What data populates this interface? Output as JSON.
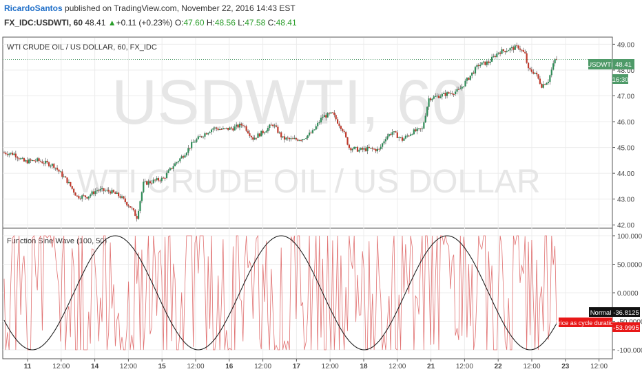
{
  "header": {
    "author": "RicardoSantos",
    "published": "published on TradingView.com, November 22, 2016 14:43 EST",
    "symbol": "FX_IDC:USDWTI, 60",
    "last": "48.41",
    "change_arrow": "▲",
    "change": "+0.11 (+0.23%)",
    "o_label": "O:",
    "o_val": "47.60",
    "h_label": "H:",
    "h_val": "48.56",
    "l_label": "L:",
    "l_val": "47.58",
    "c_label": "C:",
    "c_val": "48.41"
  },
  "main_pane": {
    "title": "WTI CRUDE OIL / US DOLLAR, 60, FX_IDC",
    "watermark_symbol": "USDWTI, 60",
    "watermark_name": "WTI CRUDE OIL / US DOLLAR",
    "symbol_tag": "USDWTI",
    "price_tag": "48.41",
    "time_tag": "16:30",
    "y_ticks": [
      "49.00",
      "48.00",
      "47.00",
      "46.00",
      "45.00",
      "44.00",
      "43.00",
      "42.00"
    ]
  },
  "indicator_pane": {
    "title": "Function Sine Wave (100, 50)",
    "y_ticks": [
      "100.0000",
      "50.0000",
      "0.0000",
      "-50.0000",
      "-100.0000"
    ],
    "normal_label": "Normal",
    "normal_value": "-36.8125",
    "cycle_label": "Price as cycle duration",
    "cycle_value": "-53.9995"
  },
  "x_axis": {
    "labels": [
      "11",
      "12:00",
      "14",
      "12:00",
      "15",
      "12:00",
      "16",
      "12:00",
      "17",
      "12:00",
      "18",
      "12:00",
      "21",
      "12:00",
      "22",
      "12:00",
      "23",
      "12:00"
    ]
  },
  "colors": {
    "up": "#2e8b57",
    "down": "#c0392b",
    "sine": "#222222",
    "cycle": "#e07070",
    "tag_green": "#4e9a68",
    "tag_red": "#e81818"
  },
  "chart_data": [
    {
      "type": "candlestick",
      "title": "WTI CRUDE OIL / US DOLLAR, 60, FX_IDC",
      "ylim": [
        41.9,
        49.25
      ],
      "x_labels": [
        "11",
        "12:00",
        "14",
        "12:00",
        "15",
        "12:00",
        "16",
        "12:00",
        "17",
        "12:00",
        "18",
        "12:00",
        "21",
        "12:00",
        "22",
        "12:00",
        "23",
        "12:00"
      ],
      "close_path": [
        [
          0,
          44.8
        ],
        [
          6,
          44.75
        ],
        [
          12,
          44.45
        ],
        [
          20,
          44.5
        ],
        [
          30,
          44.3
        ],
        [
          38,
          43.7
        ],
        [
          44,
          43.1
        ],
        [
          50,
          43.1
        ],
        [
          56,
          43.35
        ],
        [
          64,
          43.3
        ],
        [
          70,
          43.1
        ],
        [
          76,
          42.7
        ],
        [
          80,
          42.3
        ],
        [
          84,
          43.6
        ],
        [
          90,
          43.7
        ],
        [
          96,
          43.8
        ],
        [
          102,
          44.3
        ],
        [
          108,
          44.7
        ],
        [
          114,
          45.2
        ],
        [
          120,
          45.5
        ],
        [
          126,
          45.75
        ],
        [
          132,
          45.7
        ],
        [
          138,
          45.75
        ],
        [
          144,
          45.9
        ],
        [
          150,
          45.35
        ],
        [
          156,
          45.6
        ],
        [
          162,
          45.9
        ],
        [
          168,
          45.35
        ],
        [
          174,
          45.3
        ],
        [
          180,
          45.35
        ],
        [
          186,
          45.6
        ],
        [
          192,
          46.2
        ],
        [
          198,
          46.3
        ],
        [
          204,
          45.7
        ],
        [
          208,
          45.0
        ],
        [
          214,
          44.9
        ],
        [
          220,
          44.95
        ],
        [
          226,
          44.9
        ],
        [
          230,
          45.4
        ],
        [
          234,
          45.6
        ],
        [
          240,
          45.3
        ],
        [
          246,
          45.6
        ],
        [
          252,
          45.7
        ],
        [
          256,
          46.9
        ],
        [
          262,
          47.0
        ],
        [
          268,
          47.1
        ],
        [
          274,
          47.2
        ],
        [
          280,
          47.7
        ],
        [
          286,
          48.2
        ],
        [
          292,
          48.3
        ],
        [
          298,
          48.7
        ],
        [
          304,
          48.8
        ],
        [
          310,
          48.9
        ],
        [
          314,
          48.6
        ],
        [
          316,
          48.0
        ],
        [
          320,
          47.9
        ],
        [
          324,
          47.4
        ],
        [
          328,
          47.6
        ],
        [
          332,
          48.4
        ]
      ],
      "bars": 334
    },
    {
      "type": "line",
      "title": "Function Sine Wave (100, 50)",
      "ylim": [
        -100,
        100
      ],
      "series": [
        {
          "values_note": "",
          "color": "#222222",
          "period": 100,
          "last": -36.8125
        },
        {
          "color": "#e07070",
          "last": -53.9995
        }
      ]
    }
  ]
}
